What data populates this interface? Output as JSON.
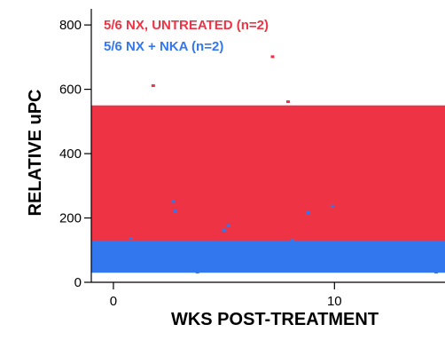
{
  "chart_data": {
    "type": "area",
    "xlabel": "WKS POST-TREATMENT",
    "ylabel": "RELATIVE uPC",
    "xlim": [
      -1,
      15
    ],
    "ylim": [
      0,
      850
    ],
    "xticks": [
      0,
      10
    ],
    "xtick_labels": [
      "0",
      "10"
    ],
    "yticks": [
      0,
      200,
      400,
      600,
      800
    ],
    "ytick_labels": [
      "0",
      "200",
      "400",
      "600",
      "800"
    ],
    "legend_position": "top-left",
    "series": [
      {
        "name": "5/6 NX, UNTREATED (n=2)",
        "color": "#ee3344",
        "band": [
          30,
          550
        ],
        "points": [
          {
            "x": 1.8,
            "y": 610
          },
          {
            "x": 7.2,
            "y": 700
          },
          {
            "x": 7.9,
            "y": 560
          }
        ]
      },
      {
        "name": "5/6 NX + NKA (n=2)",
        "color": "#3377ee",
        "band": [
          30,
          130
        ],
        "points": [
          {
            "x": -0.4,
            "y": 100
          },
          {
            "x": 0.8,
            "y": 135
          },
          {
            "x": 2.7,
            "y": 250
          },
          {
            "x": 2.8,
            "y": 220
          },
          {
            "x": 3.3,
            "y": 85
          },
          {
            "x": 3.8,
            "y": 30
          },
          {
            "x": 5.0,
            "y": 160
          },
          {
            "x": 5.2,
            "y": 175
          },
          {
            "x": 5.4,
            "y": 110
          },
          {
            "x": 6.8,
            "y": 65
          },
          {
            "x": 8.0,
            "y": 55
          },
          {
            "x": 8.1,
            "y": 130
          },
          {
            "x": 8.8,
            "y": 215
          },
          {
            "x": 9.9,
            "y": 235
          },
          {
            "x": 10.0,
            "y": 95
          },
          {
            "x": 10.1,
            "y": 65
          },
          {
            "x": 13.3,
            "y": 85
          },
          {
            "x": 13.8,
            "y": 90
          },
          {
            "x": 14.0,
            "y": 75
          },
          {
            "x": 14.6,
            "y": 30
          }
        ]
      }
    ]
  }
}
